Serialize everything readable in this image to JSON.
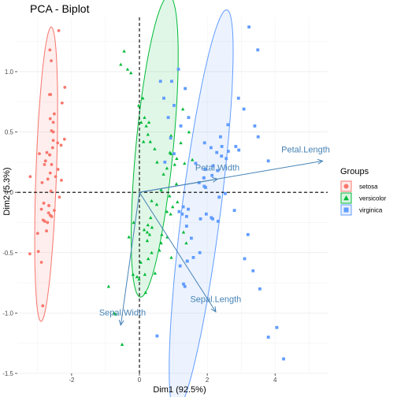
{
  "chart_data": {
    "type": "scatter",
    "title": "PCA - Biplot",
    "xlabel": "Dim1 (92.5%)",
    "ylabel": "Dim2 (5.3%)",
    "xlim": [
      -3.6,
      5.55
    ],
    "ylim": [
      -1.5,
      1.45
    ],
    "x_ticks": [
      -2,
      0,
      2,
      4
    ],
    "y_ticks": [
      -1.5,
      -1.0,
      -0.5,
      0.0,
      0.5,
      1.0
    ],
    "x_tick_labels": [
      "-2",
      "0",
      "2",
      "4"
    ],
    "y_tick_labels": [
      "-1.5",
      "-1.0",
      "-0.5",
      "0.0",
      "0.5",
      "1.0"
    ],
    "grid": true,
    "legend": {
      "title": "Groups",
      "placement": "right",
      "entries": [
        {
          "label": "setosa",
          "color": "#F8766D",
          "shape": "circle"
        },
        {
          "label": "versicolor",
          "color": "#00BA38",
          "shape": "triangle"
        },
        {
          "label": "virginica",
          "color": "#619CFF",
          "shape": "square"
        }
      ]
    },
    "series": [
      {
        "name": "setosa",
        "color": "#F8766D",
        "shape": "circle",
        "ellipse": {
          "cx": -2.75,
          "cy": 0.15,
          "rx": 1.23,
          "ry": 0.3,
          "angle_deg": 82.5
        },
        "points": [
          [
            -2.95,
            0.32
          ],
          [
            -2.68,
            -0.17
          ],
          [
            -2.89,
            -0.14
          ],
          [
            -2.74,
            -0.32
          ],
          [
            -2.73,
            0.33
          ],
          [
            -2.28,
            0.74
          ],
          [
            -2.82,
            -0.09
          ],
          [
            -2.63,
            0.16
          ],
          [
            -2.89,
            -0.58
          ],
          [
            -2.67,
            -0.11
          ],
          [
            -2.51,
            0.65
          ],
          [
            -2.61,
            0.01
          ],
          [
            -2.79,
            -0.24
          ],
          [
            -3.23,
            -0.51
          ],
          [
            -2.64,
            1.18
          ],
          [
            -2.38,
            1.34
          ],
          [
            -2.62,
            0.81
          ],
          [
            -2.65,
            0.31
          ],
          [
            -2.2,
            0.87
          ],
          [
            -2.59,
            0.51
          ],
          [
            -2.31,
            0.39
          ],
          [
            -2.54,
            0.43
          ],
          [
            -3.22,
            0.13
          ],
          [
            -2.3,
            0.1
          ],
          [
            -2.36,
            -0.04
          ],
          [
            -2.51,
            -0.15
          ],
          [
            -2.47,
            0.13
          ],
          [
            -2.56,
            0.37
          ],
          [
            -2.64,
            0.31
          ],
          [
            -2.63,
            -0.19
          ],
          [
            -2.59,
            -0.2
          ],
          [
            -2.41,
            0.41
          ],
          [
            -2.65,
            0.81
          ],
          [
            -2.6,
            1.09
          ],
          [
            -2.67,
            -0.11
          ],
          [
            -2.87,
            0.08
          ],
          [
            -2.63,
            0.61
          ],
          [
            -2.8,
            0.23
          ],
          [
            -2.98,
            -0.49
          ],
          [
            -2.59,
            0.23
          ],
          [
            -2.77,
            0.26
          ],
          [
            -2.85,
            -0.94
          ],
          [
            -3.0,
            -0.34
          ],
          [
            -2.4,
            0.19
          ],
          [
            -2.21,
            0.44
          ],
          [
            -2.71,
            -0.25
          ],
          [
            -2.54,
            0.5
          ],
          [
            -2.84,
            -0.23
          ],
          [
            -2.54,
            0.58
          ],
          [
            -2.7,
            0.11
          ]
        ]
      },
      {
        "name": "versicolor",
        "color": "#00BA38",
        "shape": "triangle",
        "ellipse": {
          "cx": 0.45,
          "cy": 0.38,
          "rx": 1.33,
          "ry": 0.52,
          "angle_deg": 68
        },
        "points": [
          [
            1.28,
            0.69
          ],
          [
            0.93,
            0.32
          ],
          [
            1.46,
            0.5
          ],
          [
            0.18,
            -0.83
          ],
          [
            1.09,
            0.07
          ],
          [
            0.64,
            -0.42
          ],
          [
            1.1,
            0.28
          ],
          [
            -0.75,
            -1.0
          ],
          [
            1.04,
            0.23
          ],
          [
            -0.01,
            -0.72
          ],
          [
            -0.51,
            -1.26
          ],
          [
            0.51,
            -0.1
          ],
          [
            0.26,
            -0.55
          ],
          [
            0.98,
            -0.12
          ],
          [
            -0.17,
            -0.25
          ],
          [
            0.93,
            0.47
          ],
          [
            0.66,
            -0.35
          ],
          [
            0.23,
            -0.33
          ],
          [
            0.94,
            -0.54
          ],
          [
            0.04,
            -0.58
          ],
          [
            1.12,
            -0.08
          ],
          [
            0.36,
            -0.07
          ],
          [
            1.3,
            -0.33
          ],
          [
            0.92,
            -0.18
          ],
          [
            0.71,
            0.15
          ],
          [
            0.9,
            0.33
          ],
          [
            1.33,
            0.24
          ],
          [
            1.56,
            0.27
          ],
          [
            0.81,
            -0.16
          ],
          [
            -0.31,
            -0.37
          ],
          [
            -0.07,
            -0.7
          ],
          [
            -0.19,
            -0.68
          ],
          [
            0.14,
            -0.31
          ],
          [
            1.38,
            -0.42
          ],
          [
            0.59,
            -0.48
          ],
          [
            0.81,
            0.2
          ],
          [
            1.22,
            0.41
          ],
          [
            0.82,
            -0.37
          ],
          [
            0.25,
            -0.27
          ],
          [
            0.16,
            -0.68
          ],
          [
            0.46,
            -0.67
          ],
          [
            0.89,
            -0.03
          ],
          [
            0.23,
            -0.4
          ],
          [
            -0.7,
            -1.01
          ],
          [
            0.36,
            -0.5
          ],
          [
            0.33,
            -0.21
          ],
          [
            0.37,
            -0.29
          ],
          [
            0.64,
            0.02
          ],
          [
            -0.91,
            -0.78
          ],
          [
            0.3,
            -0.35
          ],
          [
            -0.35,
            1.02
          ],
          [
            -0.25,
            0.99
          ],
          [
            -0.55,
            1.06
          ],
          [
            -0.45,
            1.17
          ],
          [
            0.1,
            0.78
          ],
          [
            0.05,
            0.58
          ],
          [
            -0.02,
            0.72
          ],
          [
            0.2,
            0.55
          ],
          [
            0.25,
            0.48
          ],
          [
            0.15,
            0.62
          ],
          [
            0.32,
            0.42
          ],
          [
            0.45,
            0.36
          ],
          [
            0.28,
            0.58
          ],
          [
            0.12,
            0.42
          ],
          [
            0.52,
            0.25
          ]
        ]
      },
      {
        "name": "virginica",
        "color": "#619CFF",
        "shape": "square",
        "ellipse": {
          "cx": 1.82,
          "cy": -0.15,
          "rx": 1.84,
          "ry": 0.52,
          "angle_deg": 63.5
        },
        "points": [
          [
            2.53,
            -0.01
          ],
          [
            1.41,
            -0.57
          ],
          [
            2.62,
            0.34
          ],
          [
            1.97,
            -0.18
          ],
          [
            2.35,
            -0.04
          ],
          [
            3.4,
            0.55
          ],
          [
            0.52,
            -1.19
          ],
          [
            2.93,
            0.35
          ],
          [
            2.32,
            -0.24
          ],
          [
            2.92,
            0.78
          ],
          [
            1.66,
            0.24
          ],
          [
            1.8,
            -0.22
          ],
          [
            2.17,
            0.22
          ],
          [
            1.34,
            -0.78
          ],
          [
            1.59,
            -0.54
          ],
          [
            1.9,
            0.12
          ],
          [
            1.95,
            0.04
          ],
          [
            3.49,
            1.18
          ],
          [
            3.8,
            0.26
          ],
          [
            1.3,
            -0.76
          ],
          [
            2.43,
            0.38
          ],
          [
            1.2,
            -0.61
          ],
          [
            3.5,
            0.46
          ],
          [
            1.39,
            -0.2
          ],
          [
            2.28,
            0.33
          ],
          [
            2.61,
            0.56
          ],
          [
            1.26,
            -0.18
          ],
          [
            1.29,
            -0.12
          ],
          [
            2.12,
            -0.21
          ],
          [
            2.39,
            0.46
          ],
          [
            2.84,
            0.38
          ],
          [
            3.23,
            1.37
          ],
          [
            2.16,
            -0.22
          ],
          [
            1.44,
            -0.14
          ],
          [
            1.78,
            -0.5
          ],
          [
            3.08,
            0.69
          ],
          [
            2.14,
            0.14
          ],
          [
            1.91,
            0.05
          ],
          [
            1.17,
            -0.16
          ],
          [
            2.11,
            0.37
          ],
          [
            2.31,
            0.18
          ],
          [
            1.92,
            0.41
          ],
          [
            1.41,
            -0.57
          ],
          [
            2.56,
            0.28
          ],
          [
            2.42,
            0.3
          ],
          [
            1.94,
            0.19
          ],
          [
            1.53,
            -0.38
          ],
          [
            1.76,
            0.08
          ],
          [
            1.9,
            0.12
          ],
          [
            1.39,
            -0.28
          ],
          [
            0.95,
            0.92
          ],
          [
            1.15,
            1.02
          ],
          [
            0.72,
            0.78
          ],
          [
            1.02,
            0.72
          ],
          [
            1.35,
            0.86
          ],
          [
            0.85,
            0.62
          ],
          [
            0.62,
            0.92
          ],
          [
            1.22,
            0.55
          ],
          [
            0.92,
            0.45
          ],
          [
            1.45,
            0.62
          ],
          [
            1.02,
            0.32
          ],
          [
            0.75,
            0.25
          ],
          [
            3.1,
            -0.55
          ],
          [
            3.55,
            -0.8
          ],
          [
            4.25,
            -1.38
          ],
          [
            3.8,
            -1.2
          ],
          [
            3.2,
            -0.35
          ],
          [
            2.8,
            -0.15
          ],
          [
            4.05,
            -1.12
          ],
          [
            3.35,
            -0.65
          ]
        ]
      }
    ],
    "variables": [
      {
        "label": "Petal.Length",
        "x": 5.4,
        "y": 0.26,
        "label_x": 4.9,
        "label_y": 0.33,
        "color": "#4682B4"
      },
      {
        "label": "Petal.Width",
        "x": 2.3,
        "y": 0.11,
        "label_x": 2.3,
        "label_y": 0.18,
        "color": "#4682B4"
      },
      {
        "label": "Sepal.Length",
        "x": 2.25,
        "y": -0.99,
        "label_x": 2.25,
        "label_y": -0.91,
        "color": "#4682B4"
      },
      {
        "label": "Sepal.Width",
        "x": -0.55,
        "y": -1.1,
        "label_x": -0.5,
        "label_y": -1.02,
        "color": "#4682B4"
      }
    ]
  }
}
